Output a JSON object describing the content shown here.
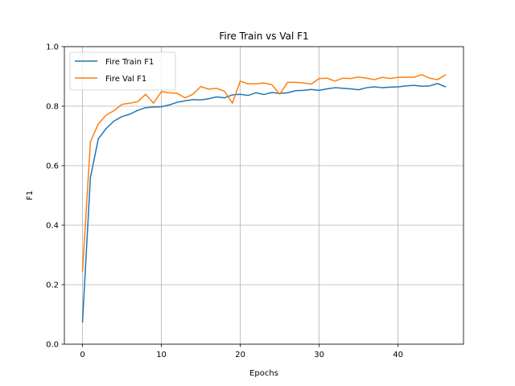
{
  "chart_data": {
    "type": "line",
    "title": "Fire Train vs Val F1",
    "xlabel": "Epochs",
    "ylabel": "F1",
    "xlim": [
      -2.3,
      48.3
    ],
    "ylim": [
      0.0,
      1.0
    ],
    "x_ticks": [
      0,
      10,
      20,
      30,
      40
    ],
    "y_ticks": [
      0.0,
      0.2,
      0.4,
      0.6,
      0.8,
      1.0
    ],
    "grid": true,
    "legend": "top-left",
    "x": [
      0,
      1,
      2,
      3,
      4,
      5,
      6,
      7,
      8,
      9,
      10,
      11,
      12,
      13,
      14,
      15,
      16,
      17,
      18,
      19,
      20,
      21,
      22,
      23,
      24,
      25,
      26,
      27,
      28,
      29,
      30,
      31,
      32,
      33,
      34,
      35,
      36,
      37,
      38,
      39,
      40,
      41,
      42,
      43,
      44,
      45,
      46
    ],
    "series": [
      {
        "name": "Fire Train F1",
        "color": "#1f77b4",
        "values": [
          0.075,
          0.56,
          0.69,
          0.725,
          0.75,
          0.765,
          0.773,
          0.786,
          0.795,
          0.797,
          0.798,
          0.804,
          0.813,
          0.818,
          0.822,
          0.821,
          0.825,
          0.831,
          0.828,
          0.838,
          0.84,
          0.836,
          0.845,
          0.839,
          0.846,
          0.843,
          0.845,
          0.852,
          0.853,
          0.856,
          0.853,
          0.858,
          0.862,
          0.86,
          0.858,
          0.855,
          0.862,
          0.865,
          0.862,
          0.864,
          0.865,
          0.868,
          0.87,
          0.867,
          0.868,
          0.876,
          0.865
        ]
      },
      {
        "name": "Fire Val F1",
        "color": "#ff7f0e",
        "values": [
          0.245,
          0.68,
          0.74,
          0.77,
          0.785,
          0.806,
          0.81,
          0.815,
          0.84,
          0.81,
          0.849,
          0.845,
          0.843,
          0.828,
          0.84,
          0.866,
          0.857,
          0.86,
          0.85,
          0.81,
          0.884,
          0.875,
          0.875,
          0.878,
          0.872,
          0.84,
          0.88,
          0.88,
          0.878,
          0.874,
          0.893,
          0.894,
          0.884,
          0.894,
          0.893,
          0.898,
          0.894,
          0.889,
          0.897,
          0.893,
          0.897,
          0.897,
          0.897,
          0.906,
          0.894,
          0.889,
          0.905
        ]
      }
    ]
  }
}
